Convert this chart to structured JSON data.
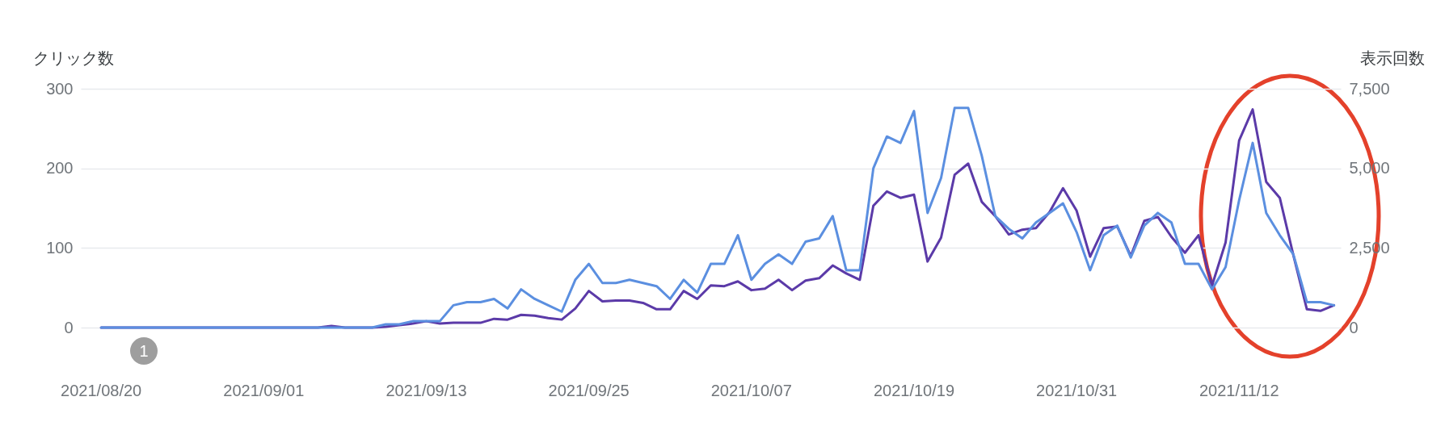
{
  "chart_data": {
    "type": "line",
    "ylabel": "クリック数",
    "y2label": "表示回数",
    "x": [
      "2021-08-20",
      "2021-08-21",
      "2021-08-22",
      "2021-08-23",
      "2021-08-24",
      "2021-08-25",
      "2021-08-26",
      "2021-08-27",
      "2021-08-28",
      "2021-08-29",
      "2021-08-30",
      "2021-08-31",
      "2021-09-01",
      "2021-09-02",
      "2021-09-03",
      "2021-09-04",
      "2021-09-05",
      "2021-09-06",
      "2021-09-07",
      "2021-09-08",
      "2021-09-09",
      "2021-09-10",
      "2021-09-11",
      "2021-09-12",
      "2021-09-13",
      "2021-09-14",
      "2021-09-15",
      "2021-09-16",
      "2021-09-17",
      "2021-09-18",
      "2021-09-19",
      "2021-09-20",
      "2021-09-21",
      "2021-09-22",
      "2021-09-23",
      "2021-09-24",
      "2021-09-25",
      "2021-09-26",
      "2021-09-27",
      "2021-09-28",
      "2021-09-29",
      "2021-09-30",
      "2021-10-01",
      "2021-10-02",
      "2021-10-03",
      "2021-10-04",
      "2021-10-05",
      "2021-10-06",
      "2021-10-07",
      "2021-10-08",
      "2021-10-09",
      "2021-10-10",
      "2021-10-11",
      "2021-10-12",
      "2021-10-13",
      "2021-10-14",
      "2021-10-15",
      "2021-10-16",
      "2021-10-17",
      "2021-10-18",
      "2021-10-19",
      "2021-10-20",
      "2021-10-21",
      "2021-10-22",
      "2021-10-23",
      "2021-10-24",
      "2021-10-25",
      "2021-10-26",
      "2021-10-27",
      "2021-10-28",
      "2021-10-29",
      "2021-10-30",
      "2021-10-31",
      "2021-11-01",
      "2021-11-02",
      "2021-11-03",
      "2021-11-04",
      "2021-11-05",
      "2021-11-06",
      "2021-11-07",
      "2021-11-08",
      "2021-11-09",
      "2021-11-10",
      "2021-11-11",
      "2021-11-12",
      "2021-11-13",
      "2021-11-14",
      "2021-11-15",
      "2021-11-16",
      "2021-11-17",
      "2021-11-18",
      "2021-11-19"
    ],
    "xlim": [
      "2021-08-18T12:00",
      "2021-11-19T12:00"
    ],
    "xticks": [
      {
        "value": "2021-08-20",
        "label": "2021/08/20"
      },
      {
        "value": "2021-09-01",
        "label": "2021/09/01"
      },
      {
        "value": "2021-09-13",
        "label": "2021/09/13"
      },
      {
        "value": "2021-09-25",
        "label": "2021/09/25"
      },
      {
        "value": "2021-10-07",
        "label": "2021/10/07"
      },
      {
        "value": "2021-10-19",
        "label": "2021/10/19"
      },
      {
        "value": "2021-10-31",
        "label": "2021/10/31"
      },
      {
        "value": "2021-11-12",
        "label": "2021/11/12"
      }
    ],
    "ylim": [
      0,
      300
    ],
    "yticks": [
      0,
      100,
      200,
      300
    ],
    "y2lim": [
      0,
      7500
    ],
    "y2ticks": [
      0,
      {
        "value": 2500,
        "label": "2,500"
      },
      {
        "value": 5000,
        "label": "5,000"
      },
      {
        "value": 7500,
        "label": "7,500"
      }
    ],
    "series": [
      {
        "color": "#5b3aa8",
        "values": [
          0,
          0,
          0,
          0,
          0,
          0,
          0,
          0,
          0,
          0,
          0,
          0,
          0,
          0,
          0,
          0,
          0,
          2,
          0,
          0,
          0,
          1,
          3,
          5,
          8,
          5,
          6,
          6,
          6,
          11,
          10,
          16,
          15,
          12,
          10,
          24,
          46,
          33,
          34,
          34,
          31,
          23,
          23,
          46,
          36,
          53,
          52,
          58,
          47,
          49,
          60,
          47,
          59,
          62,
          78,
          68,
          60,
          153,
          171,
          163,
          167,
          83,
          113,
          192,
          206,
          158,
          140,
          117,
          123,
          125,
          145,
          175,
          147,
          89,
          125,
          127,
          90,
          134,
          139,
          114,
          94,
          116,
          53,
          107,
          235,
          274,
          183,
          163,
          91,
          23,
          21,
          28
        ]
      },
      {
        "color": "#5b8fe0",
        "axis": "y2",
        "values": [
          0,
          0,
          0,
          0,
          0,
          0,
          0,
          0,
          0,
          0,
          0,
          0,
          0,
          0,
          0,
          0,
          0,
          0,
          0,
          0,
          0,
          100,
          100,
          200,
          200,
          200,
          700,
          800,
          800,
          900,
          600,
          1200,
          900,
          700,
          500,
          1500,
          2000,
          1400,
          1400,
          1500,
          1400,
          1300,
          900,
          1500,
          1100,
          2000,
          2000,
          2900,
          1500,
          2000,
          2300,
          2000,
          2700,
          2800,
          3500,
          1800,
          1800,
          5000,
          6000,
          5800,
          6800,
          3600,
          4700,
          6900,
          6900,
          5400,
          3500,
          3100,
          2800,
          3300,
          3600,
          3900,
          3000,
          1800,
          2900,
          3200,
          2200,
          3200,
          3600,
          3300,
          2000,
          2000,
          1200,
          1900,
          4000,
          5800,
          3600,
          2900,
          2300,
          800,
          800,
          700
        ]
      }
    ],
    "annotations": [
      "1"
    ],
    "grid": "y",
    "line_style": "solid"
  }
}
